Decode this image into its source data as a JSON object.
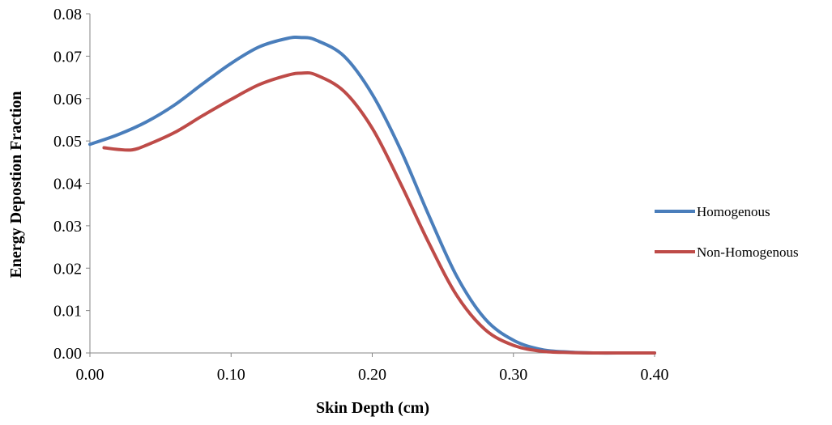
{
  "chart_data": {
    "type": "line",
    "title": "",
    "xlabel": "Skin Depth (cm)",
    "ylabel": "Energy Depostion Fraction",
    "xlim": [
      0,
      0.4
    ],
    "ylim": [
      0,
      0.08
    ],
    "x_ticks": [
      "0.00",
      "0.10",
      "0.20",
      "0.30",
      "0.40"
    ],
    "y_ticks": [
      "0.00",
      "0.01",
      "0.02",
      "0.03",
      "0.04",
      "0.05",
      "0.06",
      "0.07",
      "0.08"
    ],
    "grid": false,
    "legend_position": "right",
    "series": [
      {
        "name": "Homogenous",
        "color": "#4a7ebb",
        "x": [
          0.0,
          0.02,
          0.04,
          0.06,
          0.08,
          0.1,
          0.12,
          0.14,
          0.15,
          0.16,
          0.18,
          0.2,
          0.22,
          0.24,
          0.26,
          0.28,
          0.3,
          0.32,
          0.34,
          0.36,
          0.38,
          0.4
        ],
        "y": [
          0.0492,
          0.0515,
          0.0545,
          0.0585,
          0.0635,
          0.0683,
          0.0722,
          0.0742,
          0.0744,
          0.0738,
          0.07,
          0.061,
          0.048,
          0.0325,
          0.018,
          0.008,
          0.003,
          0.0008,
          0.0002,
          0.0,
          0.0,
          0.0
        ]
      },
      {
        "name": "Non-Homogenous",
        "color": "#be4b48",
        "x": [
          0.01,
          0.02,
          0.03,
          0.04,
          0.06,
          0.08,
          0.1,
          0.12,
          0.14,
          0.15,
          0.16,
          0.18,
          0.2,
          0.22,
          0.24,
          0.26,
          0.28,
          0.3,
          0.32,
          0.34,
          0.36,
          0.38,
          0.4
        ],
        "y": [
          0.0484,
          0.048,
          0.0479,
          0.049,
          0.052,
          0.056,
          0.0598,
          0.0633,
          0.0655,
          0.066,
          0.0656,
          0.0617,
          0.053,
          0.04,
          0.026,
          0.0135,
          0.0055,
          0.0018,
          0.0004,
          0.0001,
          0.0,
          0.0,
          0.0
        ]
      }
    ]
  }
}
